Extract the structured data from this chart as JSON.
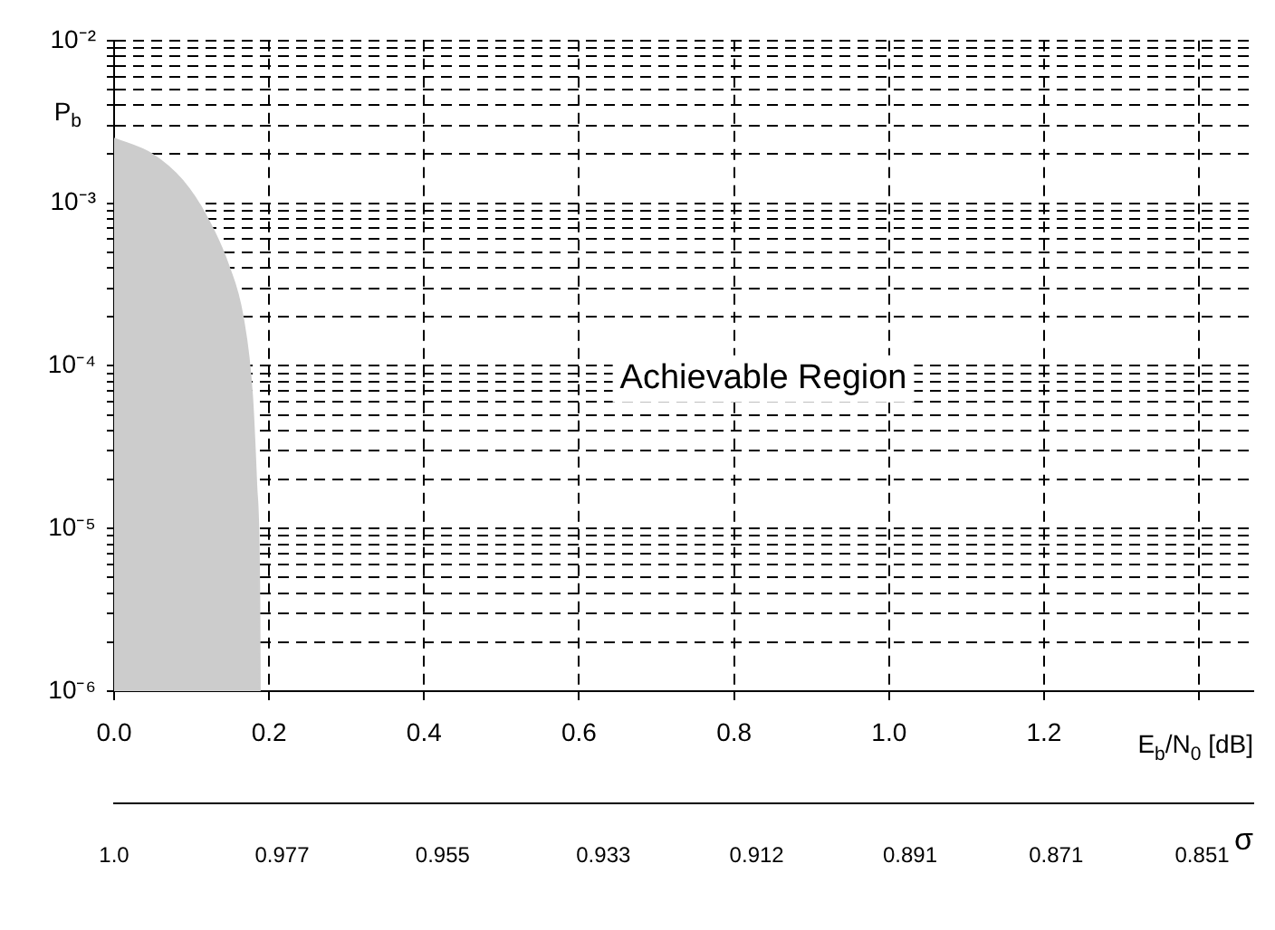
{
  "chart_data": {
    "type": "area",
    "xlabel": "E$_{b}$/N$_{0}$ [dB]",
    "ylabel": "P$_{b}$",
    "x2label": "σ",
    "annotations": [
      "Achievable Region"
    ],
    "series": [
      {
        "color": "#cccccc",
        "x": [
          0,
          0.049,
          0.088,
          0.119,
          0.147,
          0.166,
          0.178,
          0.1835,
          0.1875,
          0.188
        ],
        "values": [
          0.0025,
          0.002,
          0.00138,
          0.00083,
          0.00042,
          0.0002,
          6.6e-05,
          1.86e-05,
          3.5e-06,
          1e-06
        ]
      }
    ],
    "xlim": [
      0,
      1.47
    ],
    "xticks": [
      {
        "value": 0,
        "label": "0.0"
      },
      0.2,
      0.4,
      0.6,
      0.8,
      {
        "value": 1,
        "label": "1.0"
      },
      1.2,
      {
        "value": 1.4,
        "label": null
      }
    ],
    "x2lim": [
      1,
      0.844
    ],
    "x2ticks": [
      {
        "value": 1,
        "label": "1.0"
      },
      0.977,
      0.955,
      0.933,
      0.912,
      0.891,
      0.871,
      0.851
    ],
    "ylim": [
      1e-06,
      0.01
    ],
    "yticks": [
      {
        "value": 1e-06,
        "label": "10⁻⁶"
      },
      {
        "value": 2e-06,
        "label": null
      },
      {
        "value": 3e-06,
        "label": null
      },
      {
        "value": 4e-06,
        "label": null
      },
      {
        "value": 5e-06,
        "label": null
      },
      {
        "value": 6e-06,
        "label": null
      },
      {
        "value": 7e-06,
        "label": null
      },
      {
        "value": 8e-06,
        "label": null
      },
      {
        "value": 9e-06,
        "label": null
      },
      {
        "value": 1e-05,
        "label": "10⁻⁵"
      },
      {
        "value": 2e-05,
        "label": null
      },
      {
        "value": 3e-05,
        "label": null
      },
      {
        "value": 4e-05,
        "label": null
      },
      {
        "value": 5e-05,
        "label": null
      },
      {
        "value": 6e-05,
        "label": null
      },
      {
        "value": 7e-05,
        "label": null
      },
      {
        "value": 8e-05,
        "label": null
      },
      {
        "value": 9e-05,
        "label": null
      },
      {
        "value": 0.0001,
        "label": "10⁻⁴"
      },
      {
        "value": 0.0002,
        "label": null
      },
      {
        "value": 0.0003,
        "label": null
      },
      {
        "value": 0.0004,
        "label": null
      },
      {
        "value": 0.0005,
        "label": null
      },
      {
        "value": 0.0006,
        "label": null
      },
      {
        "value": 0.0007,
        "label": null
      },
      {
        "value": 0.0008,
        "label": null
      },
      {
        "value": 0.0009,
        "label": null
      },
      {
        "value": 0.001,
        "label": "10⁻³"
      },
      {
        "value": 0.002,
        "label": null
      },
      {
        "value": 0.003,
        "label": null
      },
      {
        "value": 0.004,
        "label": null
      },
      {
        "value": 0.005,
        "label": null
      },
      {
        "value": 0.006,
        "label": null
      },
      {
        "value": 0.007,
        "label": null
      },
      {
        "value": 0.008,
        "label": null
      },
      {
        "value": 0.009,
        "label": null
      },
      {
        "value": 0.01,
        "label": "10⁻²"
      }
    ],
    "log": true,
    "grid": true
  }
}
